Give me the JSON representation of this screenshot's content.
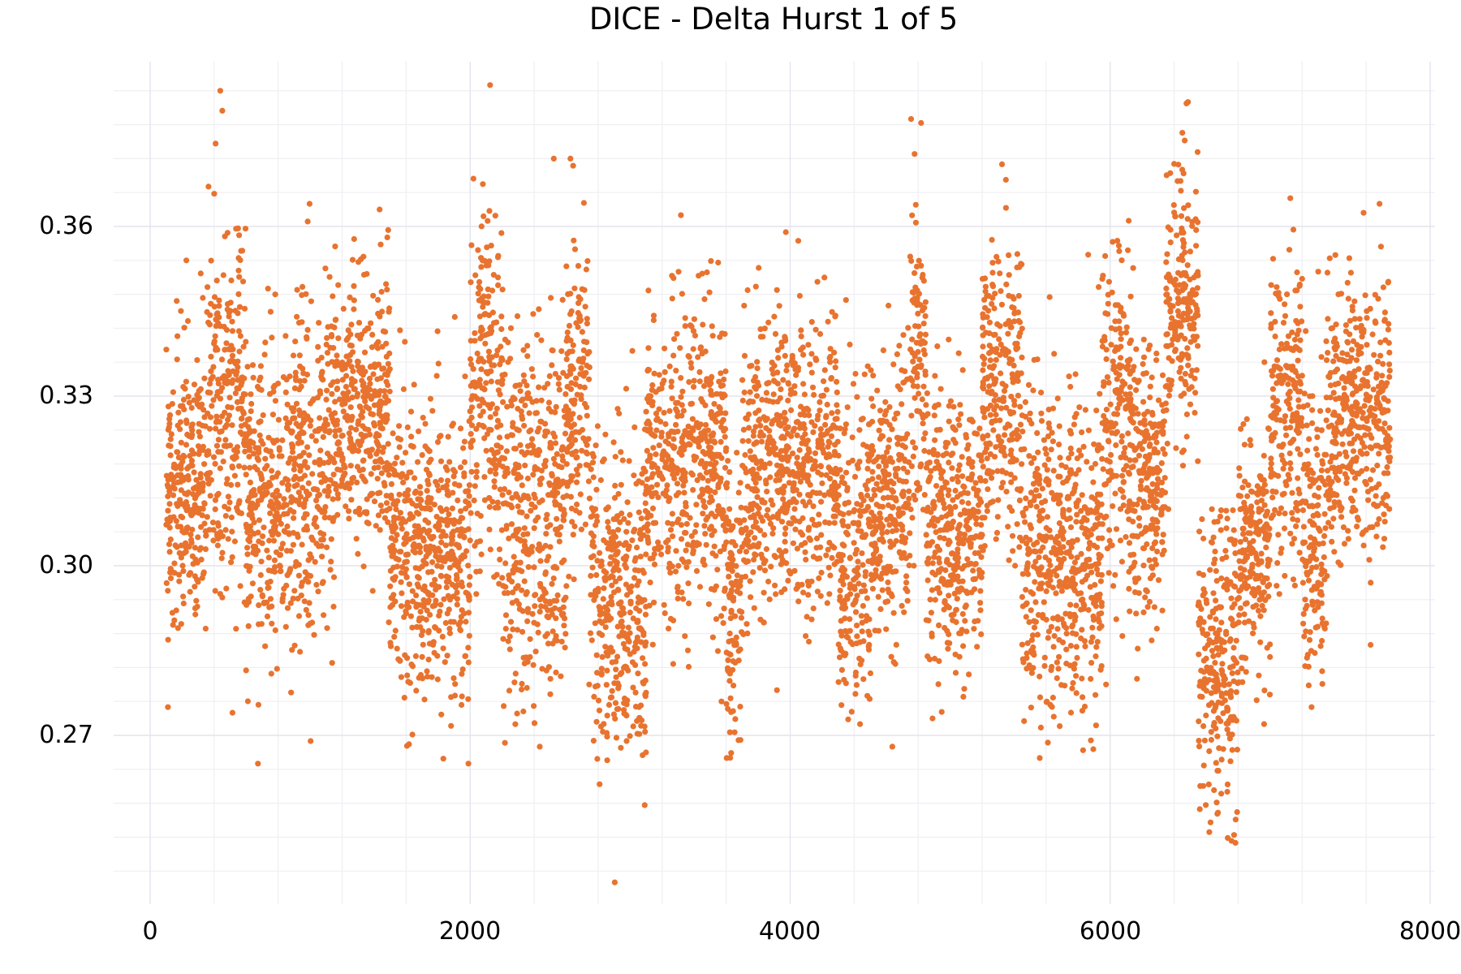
{
  "chart_data": {
    "type": "scatter",
    "title": "DICE - Delta Hurst 1 of 5",
    "xlabel": "",
    "ylabel": "",
    "xlim": [
      -250,
      8000
    ],
    "ylim": [
      0.2398,
      0.3846
    ],
    "x_ticks": [
      0,
      2000,
      4000,
      6000,
      8000
    ],
    "x_tick_labels": [
      "0",
      "2000",
      "4000",
      "6000",
      "8000"
    ],
    "y_ticks": [
      0.27,
      0.3,
      0.33,
      0.36
    ],
    "y_tick_labels": [
      "0.27",
      "0.30",
      "0.33",
      "0.36"
    ],
    "x_minor_step": 400,
    "y_minor_step": 0.006,
    "grid": true,
    "legend": null,
    "marker_color": "#E8732F",
    "marker_radius_px": 3.6,
    "approx_point_count": 7650,
    "x_data_range": [
      100,
      7750
    ],
    "series": [
      {
        "name": "Delta Hurst",
        "description": "Dense point cloud per sample index; values summarised by index segments (mean, spread, observed min, observed max)",
        "segments": [
          {
            "x0": 100,
            "x1": 350,
            "mean": 0.313,
            "sd": 0.013,
            "min": 0.275,
            "max": 0.354
          },
          {
            "x0": 350,
            "x1": 600,
            "mean": 0.327,
            "sd": 0.016,
            "min": 0.274,
            "max": 0.384
          },
          {
            "x0": 600,
            "x1": 900,
            "mean": 0.31,
            "sd": 0.014,
            "min": 0.265,
            "max": 0.349
          },
          {
            "x0": 900,
            "x1": 1150,
            "mean": 0.318,
            "sd": 0.015,
            "min": 0.269,
            "max": 0.364
          },
          {
            "x0": 1150,
            "x1": 1500,
            "mean": 0.328,
            "sd": 0.012,
            "min": 0.29,
            "max": 0.363
          },
          {
            "x0": 1500,
            "x1": 2000,
            "mean": 0.302,
            "sd": 0.012,
            "min": 0.265,
            "max": 0.344
          },
          {
            "x0": 2000,
            "x1": 2200,
            "mean": 0.33,
            "sd": 0.016,
            "min": 0.295,
            "max": 0.385
          },
          {
            "x0": 2200,
            "x1": 2600,
            "mean": 0.31,
            "sd": 0.016,
            "min": 0.268,
            "max": 0.372
          },
          {
            "x0": 2600,
            "x1": 2750,
            "mean": 0.33,
            "sd": 0.015,
            "min": 0.279,
            "max": 0.372
          },
          {
            "x0": 2750,
            "x1": 3100,
            "mean": 0.294,
            "sd": 0.013,
            "min": 0.244,
            "max": 0.338
          },
          {
            "x0": 3100,
            "x1": 3600,
            "mean": 0.318,
            "sd": 0.013,
            "min": 0.276,
            "max": 0.362
          },
          {
            "x0": 3600,
            "x1": 3700,
            "mean": 0.292,
            "sd": 0.012,
            "min": 0.266,
            "max": 0.32
          },
          {
            "x0": 3700,
            "x1": 4300,
            "mean": 0.318,
            "sd": 0.013,
            "min": 0.278,
            "max": 0.359
          },
          {
            "x0": 4300,
            "x1": 4500,
            "mean": 0.3,
            "sd": 0.014,
            "min": 0.272,
            "max": 0.347
          },
          {
            "x0": 4500,
            "x1": 4750,
            "mean": 0.312,
            "sd": 0.012,
            "min": 0.268,
            "max": 0.346
          },
          {
            "x0": 4750,
            "x1": 4850,
            "mean": 0.337,
            "sd": 0.015,
            "min": 0.3,
            "max": 0.379
          },
          {
            "x0": 4850,
            "x1": 5200,
            "mean": 0.306,
            "sd": 0.012,
            "min": 0.273,
            "max": 0.34
          },
          {
            "x0": 5200,
            "x1": 5450,
            "mean": 0.331,
            "sd": 0.013,
            "min": 0.3,
            "max": 0.371
          },
          {
            "x0": 5450,
            "x1": 5950,
            "mean": 0.303,
            "sd": 0.014,
            "min": 0.266,
            "max": 0.355
          },
          {
            "x0": 5950,
            "x1": 6150,
            "mean": 0.326,
            "sd": 0.015,
            "min": 0.279,
            "max": 0.361
          },
          {
            "x0": 6150,
            "x1": 6350,
            "mean": 0.313,
            "sd": 0.013,
            "min": 0.28,
            "max": 0.34
          },
          {
            "x0": 6350,
            "x1": 6550,
            "mean": 0.346,
            "sd": 0.012,
            "min": 0.31,
            "max": 0.382
          },
          {
            "x0": 6550,
            "x1": 6800,
            "mean": 0.282,
            "sd": 0.013,
            "min": 0.251,
            "max": 0.31
          },
          {
            "x0": 6800,
            "x1": 7000,
            "mean": 0.302,
            "sd": 0.01,
            "min": 0.272,
            "max": 0.336
          },
          {
            "x0": 7000,
            "x1": 7200,
            "mean": 0.326,
            "sd": 0.013,
            "min": 0.295,
            "max": 0.365
          },
          {
            "x0": 7200,
            "x1": 7350,
            "mean": 0.305,
            "sd": 0.013,
            "min": 0.275,
            "max": 0.352
          },
          {
            "x0": 7350,
            "x1": 7750,
            "mean": 0.326,
            "sd": 0.012,
            "min": 0.286,
            "max": 0.364
          }
        ]
      }
    ]
  }
}
